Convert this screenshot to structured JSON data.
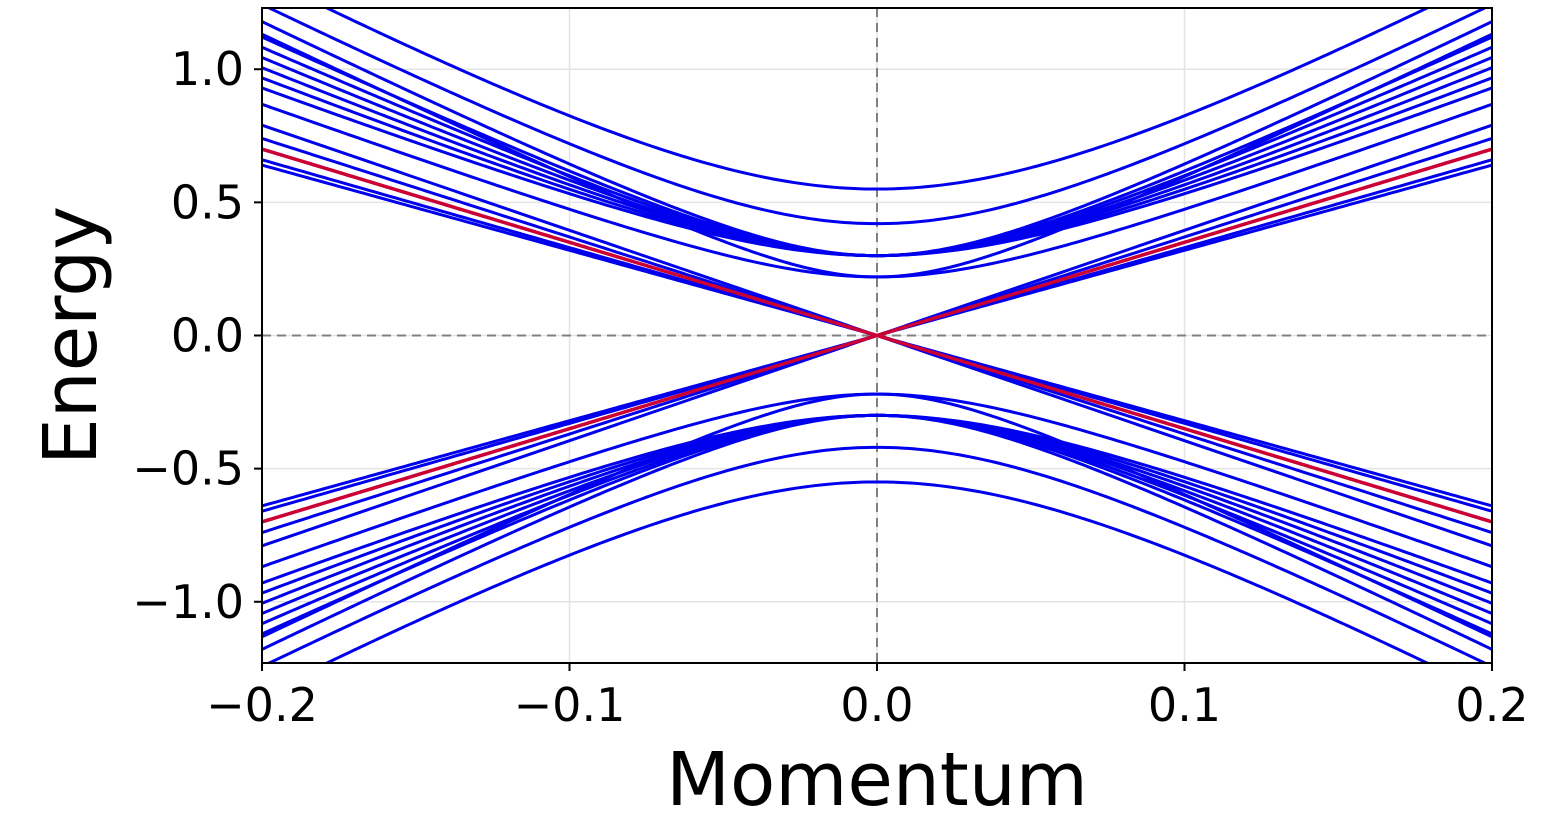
{
  "chart_data": {
    "type": "line",
    "title": "",
    "xlabel": "Momentum",
    "ylabel": "Energy",
    "xlim": [
      -0.2,
      0.2
    ],
    "ylim": [
      -1.23,
      1.23
    ],
    "xticks": [
      -0.2,
      -0.1,
      0.0,
      0.1,
      0.2
    ],
    "xtick_labels": [
      "−0.2",
      "−0.1",
      "0.0",
      "0.1",
      "0.2"
    ],
    "yticks": [
      -1.0,
      -0.5,
      0.0,
      0.5,
      1.0
    ],
    "ytick_labels": [
      "−1.0",
      "−0.5",
      "0.0",
      "0.5",
      "1.0"
    ],
    "grid": true,
    "reference_lines": {
      "x": 0.0,
      "y": 0.0,
      "style": "dashed",
      "color": "#808080"
    },
    "legend": "none",
    "colors": {
      "bands": "#0000ee",
      "highlighted_band": "#cc0033"
    },
    "bands": {
      "description_of_values": "Each band E(k) = sign * sqrt(gap^2 + (v*k)^2), plotted for k in [-0.2, 0.2]",
      "upper_and_lower_mirror": true,
      "gapped": [
        {
          "gap": 0.55,
          "v": 6.15
        },
        {
          "gap": 0.42,
          "v": 5.85
        },
        {
          "gap": 0.3,
          "v": 5.7
        },
        {
          "gap": 0.22,
          "v": 5.55
        },
        {
          "gap": 0.3,
          "v": 5.4
        },
        {
          "gap": 0.3,
          "v": 5.2
        },
        {
          "gap": 0.3,
          "v": 5.0
        },
        {
          "gap": 0.3,
          "v": 4.8
        },
        {
          "gap": 0.3,
          "v": 4.6
        },
        {
          "gap": 0.3,
          "v": 4.4
        },
        {
          "gap": 0.22,
          "v": 4.2
        },
        {
          "gap": 0.0,
          "v": 3.95
        },
        {
          "gap": 0.0,
          "v": 3.7
        },
        {
          "gap": 0.0,
          "v": 3.5
        },
        {
          "gap": 0.0,
          "v": 3.3
        },
        {
          "gap": 0.0,
          "v": 3.2
        }
      ],
      "highlighted": {
        "gap": 0.0,
        "v": 3.5,
        "name_shown": false
      }
    }
  }
}
